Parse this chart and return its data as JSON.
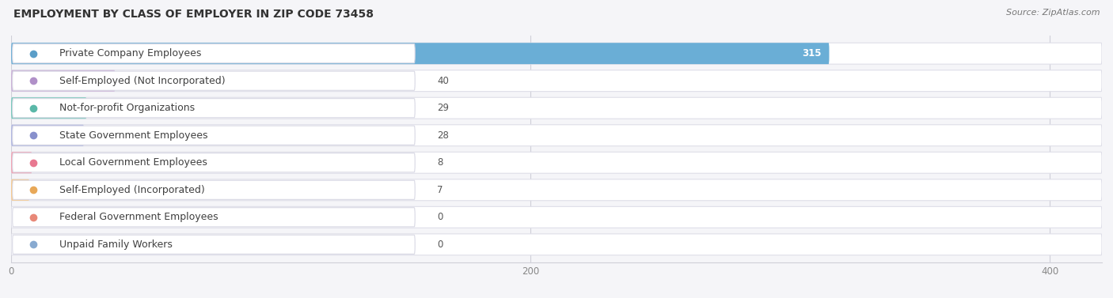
{
  "title": "EMPLOYMENT BY CLASS OF EMPLOYER IN ZIP CODE 73458",
  "source": "Source: ZipAtlas.com",
  "categories": [
    "Private Company Employees",
    "Self-Employed (Not Incorporated)",
    "Not-for-profit Organizations",
    "State Government Employees",
    "Local Government Employees",
    "Self-Employed (Incorporated)",
    "Federal Government Employees",
    "Unpaid Family Workers"
  ],
  "values": [
    315,
    40,
    29,
    28,
    8,
    7,
    0,
    0
  ],
  "bar_colors": [
    "#6aaed6",
    "#c9aed6",
    "#72c7b8",
    "#adb4e0",
    "#f4a0b0",
    "#f8c98a",
    "#f4aa98",
    "#a8c4e0"
  ],
  "dot_colors": [
    "#5a9ec8",
    "#b090c8",
    "#5ab8a8",
    "#8890cc",
    "#e87890",
    "#e8a858",
    "#e88878",
    "#88aad0"
  ],
  "row_bg_color": "#f0f0f5",
  "row_white_color": "#ffffff",
  "xlim_max": 420,
  "xticks": [
    0,
    200,
    400
  ],
  "background_color": "#f5f5f8",
  "title_fontsize": 10,
  "source_fontsize": 8,
  "label_fontsize": 9,
  "value_fontsize": 8.5,
  "value_label_inside_color": "white",
  "value_label_outside_color": "#555555",
  "grid_color": "#d0d0d8",
  "spine_color": "#d0d0d8"
}
